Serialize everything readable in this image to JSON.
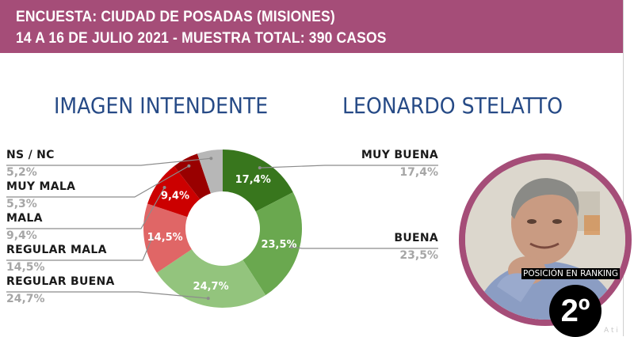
{
  "header": {
    "line1": "ENCUESTA: CIUDAD DE POSADAS (MISIONES)",
    "line2": "14 A 16 DE JULIO 2021 - MUESTRA TOTAL: 390 CASOS"
  },
  "colors": {
    "header_bg": "#a54d78",
    "title": "#264a86",
    "photo_ring": "#a54d78"
  },
  "chart_data": {
    "type": "pie",
    "variant": "donut",
    "title": "IMAGEN INTENDENTE  LEONARDO STELATTO",
    "title_parts": [
      "IMAGEN INTENDENTE",
      "LEONARDO STELATTO"
    ],
    "unit": "%",
    "slices": [
      {
        "name": "MUY BUENA",
        "value": 17.4,
        "label": "17,4%",
        "color": "#38761d",
        "side": "right"
      },
      {
        "name": "BUENA",
        "value": 23.5,
        "label": "23,5%",
        "color": "#6aa84f",
        "side": "right"
      },
      {
        "name": "REGULAR BUENA",
        "value": 24.7,
        "label": "24,7%",
        "color": "#93c47d",
        "side": "left"
      },
      {
        "name": "REGULAR MALA",
        "value": 14.5,
        "label": "14,5%",
        "color": "#e06666",
        "side": "left"
      },
      {
        "name": "MALA",
        "value": 9.4,
        "label": "9,4%",
        "color": "#cc0000",
        "side": "left"
      },
      {
        "name": "MUY MALA",
        "value": 5.3,
        "label": "5,3%",
        "color": "#990000",
        "side": "left"
      },
      {
        "name": "NS / NC",
        "value": 5.2,
        "label": "5,2%",
        "color": "#b7b7b7",
        "side": "left"
      }
    ],
    "inner_labels_shown": [
      "MUY BUENA",
      "BUENA",
      "REGULAR BUENA",
      "REGULAR MALA",
      "MALA"
    ]
  },
  "legend_left_order": [
    "NS / NC",
    "MUY MALA",
    "MALA",
    "REGULAR MALA",
    "REGULAR BUENA"
  ],
  "legend_right_order": [
    "MUY BUENA",
    "BUENA"
  ],
  "ranking": {
    "label": "POSICIÓN EN RANKING",
    "position": "2º"
  },
  "watermark": "A  t  i"
}
